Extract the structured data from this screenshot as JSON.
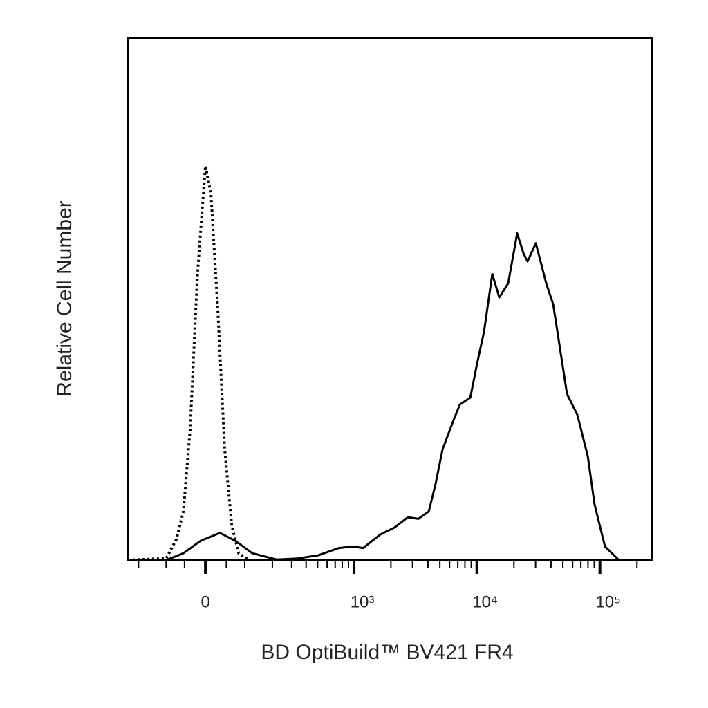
{
  "chart_data": {
    "type": "line",
    "x_label": "BD OptiBuild™ BV421 FR4",
    "y_label": "Relative Cell Number",
    "xscale": "biexponential",
    "xlim": [
      -251,
      265000
    ],
    "ylim": [
      0,
      100
    ],
    "xticks": [
      0,
      {
        "value": 1000,
        "label": "10³"
      },
      {
        "value": 10000,
        "label": "10⁴"
      },
      {
        "value": 100000,
        "label": "10⁵"
      }
    ],
    "xminor_ticks": [
      -200,
      -100,
      -50,
      50,
      100,
      200,
      300,
      400,
      500,
      600,
      700,
      800,
      900,
      2000,
      3000,
      4000,
      5000,
      6000,
      7000,
      8000,
      9000,
      20000,
      30000,
      40000,
      50000,
      60000,
      70000,
      80000,
      90000,
      200000
    ],
    "series": [
      {
        "color": "#000000",
        "style": "solid",
        "x": [
          -251,
          -100,
          -53,
          -11,
          34,
          73,
          124,
          219,
          337,
          505,
          752,
          976,
          1187,
          1641,
          2128,
          2752,
          3346,
          4064,
          4620,
          5262,
          6390,
          7270,
          8840,
          10050,
          11430,
          13350,
          15200,
          17970,
          21250,
          23880,
          25810,
          30140,
          36600,
          41700,
          54000,
          65600,
          79700,
          90600,
          110000,
          142600,
          265000
        ],
        "values": [
          0,
          0,
          1.3,
          3.7,
          5.2,
          3.7,
          1.3,
          0.1,
          0.3,
          0.9,
          2.3,
          2.6,
          2.3,
          4.9,
          6.2,
          8.2,
          7.9,
          9.3,
          14.6,
          21.2,
          26.5,
          29.8,
          31.1,
          37.7,
          43.7,
          54.8,
          50.3,
          53.0,
          62.6,
          58.8,
          57.2,
          60.7,
          53.0,
          49.0,
          31.8,
          27.8,
          19.9,
          10.6,
          2.6,
          0,
          0
        ]
      },
      {
        "color": "#000000",
        "style": "dotted",
        "x": [
          -251,
          -100,
          -71,
          -53,
          -36,
          -19,
          0,
          12.9,
          29.2,
          45.9,
          63.8,
          82.7,
          113,
          265000
        ],
        "values": [
          0,
          0.3,
          4.0,
          9.3,
          25.2,
          54.3,
          75.5,
          70.2,
          47.7,
          21.2,
          6.6,
          1.3,
          0,
          0
        ]
      }
    ]
  }
}
